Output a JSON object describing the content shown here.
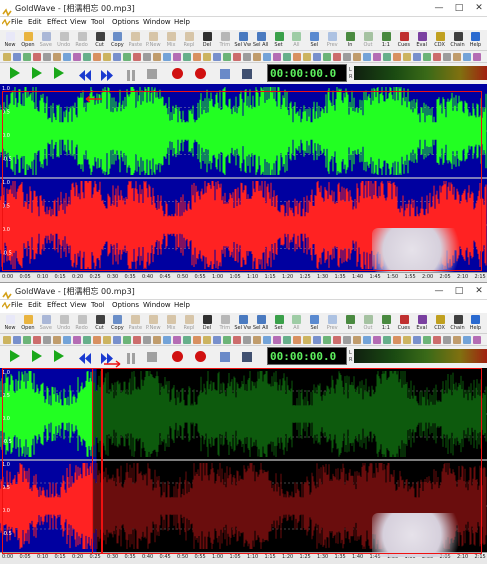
{
  "title": "GoldWave - [相濡相忘 00.mp3]",
  "window_buttons": {
    "min": "—",
    "max": "□",
    "close": "✕"
  },
  "menu": [
    "File",
    "Edit",
    "Effect",
    "View",
    "Tool",
    "Options",
    "Window",
    "Help"
  ],
  "toolbar": [
    {
      "label": "New",
      "icon": "new-doc-icon",
      "color": "#e8e8f8",
      "enabled": true
    },
    {
      "label": "Open",
      "icon": "open-folder-icon",
      "color": "#e9b440",
      "enabled": true
    },
    {
      "label": "Save",
      "icon": "save-disk-icon",
      "color": "#5470b8",
      "enabled": false
    },
    {
      "label": "Undo",
      "icon": "undo-icon",
      "color": "#8a8a8a",
      "enabled": false
    },
    {
      "label": "Redo",
      "icon": "redo-icon",
      "color": "#8a8a8a",
      "enabled": false
    },
    {
      "label": "Cut",
      "icon": "scissors-icon",
      "color": "#404040",
      "enabled": true
    },
    {
      "label": "Copy",
      "icon": "copy-icon",
      "color": "#6a8ec8",
      "enabled": true
    },
    {
      "label": "Paste",
      "icon": "paste-icon",
      "color": "#b89050",
      "enabled": false
    },
    {
      "label": "P.New",
      "icon": "paste-new-icon",
      "color": "#b89050",
      "enabled": false
    },
    {
      "label": "Mix",
      "icon": "mix-icon",
      "color": "#b89050",
      "enabled": false
    },
    {
      "label": "Repl",
      "icon": "replace-icon",
      "color": "#b89050",
      "enabled": false
    },
    {
      "label": "Del",
      "icon": "delete-icon",
      "color": "#303030",
      "enabled": true
    },
    {
      "label": "Trim",
      "icon": "trim-icon",
      "color": "#707070",
      "enabled": false
    },
    {
      "label": "Sel Vw",
      "icon": "select-view-icon",
      "color": "#4a7ac0",
      "enabled": true
    },
    {
      "label": "Sel All",
      "icon": "select-all-icon",
      "color": "#4a7ac0",
      "enabled": true
    },
    {
      "label": "Set",
      "icon": "set-marker-icon",
      "color": "#3aa04a",
      "enabled": true
    },
    {
      "label": "All",
      "icon": "zoom-all-icon",
      "color": "#3aa04a",
      "enabled": false
    },
    {
      "label": "Sel",
      "icon": "zoom-selection-icon",
      "color": "#5a8ad0",
      "enabled": true
    },
    {
      "label": "Prev",
      "icon": "zoom-previous-icon",
      "color": "#5a8ad0",
      "enabled": false
    },
    {
      "label": "In",
      "icon": "zoom-in-icon",
      "color": "#4a8a40",
      "enabled": true
    },
    {
      "label": "Out",
      "icon": "zoom-out-icon",
      "color": "#4a8a40",
      "enabled": false
    },
    {
      "label": "1:1",
      "icon": "zoom-one-to-one-icon",
      "color": "#4a8a40",
      "enabled": true
    },
    {
      "label": "Cues",
      "icon": "cue-points-icon",
      "color": "#c03030",
      "enabled": true
    },
    {
      "label": "Eval",
      "icon": "evaluator-icon",
      "color": "#7a40a0",
      "enabled": true
    },
    {
      "label": "CDX",
      "icon": "cd-reader-icon",
      "color": "#c0a020",
      "enabled": true
    },
    {
      "label": "Chain",
      "icon": "chain-icon",
      "color": "#404040",
      "enabled": true
    },
    {
      "label": "Help",
      "icon": "help-icon",
      "color": "#2a6ad0",
      "enabled": true
    }
  ],
  "transport": {
    "time": "00:00:00.0",
    "channel_labels": [
      "L",
      "R"
    ],
    "buttons": [
      "play",
      "play-selection",
      "play-from-start",
      "rewind",
      "fast-forward",
      "pause",
      "stop",
      "record",
      "record-new",
      "properties",
      "control-window"
    ]
  },
  "ruler_labels": [
    "0:00",
    "0:05",
    "0:10",
    "0:15",
    "0:20",
    "0:25",
    "0:30",
    "0:35",
    "0:40",
    "0:45",
    "0:50",
    "0:55",
    "1:00",
    "1:05",
    "1:10",
    "1:15",
    "1:20",
    "1:25",
    "1:30",
    "1:35",
    "1:40",
    "1:45",
    "1:50",
    "1:55",
    "2:00",
    "2:05",
    "2:10",
    "2:15"
  ],
  "panes": [
    {
      "id": "top",
      "axis_top": [
        "1.0",
        "0.5",
        "0.0",
        "-0.5"
      ],
      "axis_bottom": [
        "1.0",
        "0.5",
        "0.0",
        "-0.5"
      ],
      "playback_fraction": 0.0
    },
    {
      "id": "bottom",
      "axis_top": [
        "1.0",
        "0.5",
        "0.0",
        "-0.5"
      ],
      "axis_bottom": [
        "1.0",
        "0.5",
        "0.0",
        "-0.5"
      ],
      "playback_fraction": 0.19
    }
  ],
  "colors": {
    "left_channel": "#22ff22",
    "right_channel": "#ff2222",
    "background_blue": "#0000a0",
    "dim_green": "#0d5a0d",
    "dim_red": "#6a0d0d",
    "annotation_red": "#e11111"
  }
}
